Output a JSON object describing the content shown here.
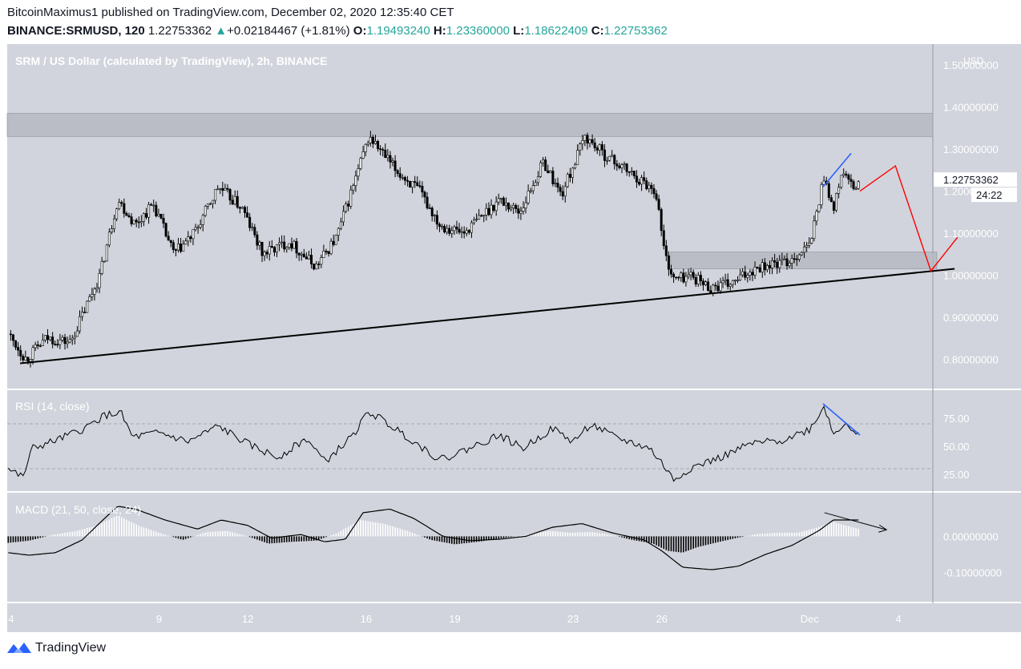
{
  "header": {
    "publisher_line": "BitcoinMaximus1 published on TradingView.com, December 02, 2020 12:35:40 CET",
    "symbol": "BINANCE:SRMUSD, 120",
    "last": "1.22753362",
    "change_arrow": "▲",
    "change": "+0.02184467 (+1.81%)",
    "o_label": "O:",
    "o_value": "1.19493240",
    "h_label": "H:",
    "h_value": "1.23360000",
    "l_label": "L:",
    "l_value": "1.18622409",
    "c_label": "C:",
    "c_value": "1.22753362"
  },
  "footer": {
    "brand": "TradingView"
  },
  "colors": {
    "panel_bg": "#d1d4dc",
    "up": "#ffffff",
    "down": "#000000",
    "projection": "#ff0000",
    "divergence": "#2962ff",
    "zone": "#b2b5be"
  },
  "chart_data": [
    {
      "type": "candlestick",
      "title": "SRM / US Dollar (calculated by TradingView), 2h, BINANCE",
      "currency_label": "USD",
      "ylim": [
        0.73,
        1.55
      ],
      "y_ticks": [
        1.5,
        1.4,
        1.3,
        1.2,
        1.1,
        1.0,
        0.9,
        0.8
      ],
      "y_tick_labels": [
        "1.50000000",
        "1.40000000",
        "1.30000000",
        "1.20000000",
        "1.10000000",
        "1.00000000",
        "0.90000000",
        "0.80000000"
      ],
      "x_tick_labels": [
        "4",
        "9",
        "12",
        "16",
        "19",
        "23",
        "26",
        "Dec",
        "4"
      ],
      "x_tick_days": [
        4,
        9,
        12,
        16,
        19,
        23,
        26,
        31,
        34
      ],
      "last_price_label": "1.22753362",
      "countdown_label": "24:22",
      "price_path": [
        {
          "day": 3.9,
          "price": 0.86
        },
        {
          "day": 4.5,
          "price": 0.8
        },
        {
          "day": 5.2,
          "price": 0.85
        },
        {
          "day": 6.0,
          "price": 0.84
        },
        {
          "day": 7.0,
          "price": 1.0
        },
        {
          "day": 7.6,
          "price": 1.18
        },
        {
          "day": 8.2,
          "price": 1.12
        },
        {
          "day": 8.8,
          "price": 1.17
        },
        {
          "day": 9.5,
          "price": 1.05
        },
        {
          "day": 10.2,
          "price": 1.1
        },
        {
          "day": 11.0,
          "price": 1.21
        },
        {
          "day": 11.8,
          "price": 1.16
        },
        {
          "day": 12.5,
          "price": 1.05
        },
        {
          "day": 13.4,
          "price": 1.08
        },
        {
          "day": 14.3,
          "price": 1.02
        },
        {
          "day": 15.0,
          "price": 1.09
        },
        {
          "day": 15.6,
          "price": 1.22
        },
        {
          "day": 16.1,
          "price": 1.33
        },
        {
          "day": 17.0,
          "price": 1.25
        },
        {
          "day": 17.8,
          "price": 1.2
        },
        {
          "day": 18.5,
          "price": 1.12
        },
        {
          "day": 19.3,
          "price": 1.1
        },
        {
          "day": 20.5,
          "price": 1.18
        },
        {
          "day": 21.2,
          "price": 1.15
        },
        {
          "day": 22.0,
          "price": 1.27
        },
        {
          "day": 22.6,
          "price": 1.19
        },
        {
          "day": 23.4,
          "price": 1.33
        },
        {
          "day": 24.0,
          "price": 1.29
        },
        {
          "day": 25.0,
          "price": 1.24
        },
        {
          "day": 25.8,
          "price": 1.2
        },
        {
          "day": 26.1,
          "price": 1.05
        },
        {
          "day": 26.4,
          "price": 0.99
        },
        {
          "day": 27.0,
          "price": 1.0
        },
        {
          "day": 27.6,
          "price": 0.97
        },
        {
          "day": 28.4,
          "price": 0.98
        },
        {
          "day": 29.2,
          "price": 1.02
        },
        {
          "day": 30.2,
          "price": 1.03
        },
        {
          "day": 31.0,
          "price": 1.07
        },
        {
          "day": 31.5,
          "price": 1.24
        },
        {
          "day": 31.8,
          "price": 1.15
        },
        {
          "day": 32.1,
          "price": 1.25
        },
        {
          "day": 32.5,
          "price": 1.2
        },
        {
          "day": 32.7,
          "price": 1.2275
        }
      ],
      "resistance_zone": {
        "from": 1.33,
        "to": 1.385
      },
      "support_zone": {
        "day_from": 26.3,
        "day_to": 35.3,
        "from": 1.015,
        "to": 1.055
      },
      "ascending_trendline": [
        {
          "day": 4.3,
          "price": 0.79
        },
        {
          "day": 35.9,
          "price": 1.015
        }
      ],
      "projection_path": [
        {
          "day": 32.7,
          "price": 1.2
        },
        {
          "day": 33.9,
          "price": 1.26
        },
        {
          "day": 35.1,
          "price": 1.01
        },
        {
          "day": 36.0,
          "price": 1.09
        }
      ],
      "price_divergence_line": [
        {
          "day": 31.45,
          "price": 1.21
        },
        {
          "day": 32.4,
          "price": 1.29
        }
      ]
    },
    {
      "type": "line",
      "title": "RSI (14, close)",
      "ylim": [
        10,
        100
      ],
      "y_ticks": [
        75,
        50,
        25
      ],
      "y_tick_labels": [
        "75.00",
        "50.00",
        "25.00"
      ],
      "bands": [
        70,
        30
      ],
      "values_path": [
        {
          "day": 3.9,
          "value": 30
        },
        {
          "day": 4.4,
          "value": 22
        },
        {
          "day": 4.7,
          "value": 48
        },
        {
          "day": 5.5,
          "value": 55
        },
        {
          "day": 6.5,
          "value": 66
        },
        {
          "day": 7.1,
          "value": 77
        },
        {
          "day": 7.7,
          "value": 80
        },
        {
          "day": 8.1,
          "value": 58
        },
        {
          "day": 9.0,
          "value": 62
        },
        {
          "day": 10.0,
          "value": 54
        },
        {
          "day": 11.0,
          "value": 68
        },
        {
          "day": 12.0,
          "value": 52
        },
        {
          "day": 13.0,
          "value": 40
        },
        {
          "day": 14.0,
          "value": 57
        },
        {
          "day": 14.6,
          "value": 36
        },
        {
          "day": 15.5,
          "value": 58
        },
        {
          "day": 16.1,
          "value": 81
        },
        {
          "day": 17.2,
          "value": 62
        },
        {
          "day": 18.5,
          "value": 38
        },
        {
          "day": 19.3,
          "value": 46
        },
        {
          "day": 20.5,
          "value": 60
        },
        {
          "day": 21.3,
          "value": 48
        },
        {
          "day": 22.3,
          "value": 66
        },
        {
          "day": 23.0,
          "value": 54
        },
        {
          "day": 23.6,
          "value": 70
        },
        {
          "day": 24.4,
          "value": 58
        },
        {
          "day": 25.6,
          "value": 48
        },
        {
          "day": 26.0,
          "value": 35
        },
        {
          "day": 26.4,
          "value": 20
        },
        {
          "day": 27.0,
          "value": 31
        },
        {
          "day": 28.0,
          "value": 40
        },
        {
          "day": 29.0,
          "value": 52
        },
        {
          "day": 30.0,
          "value": 55
        },
        {
          "day": 31.0,
          "value": 65
        },
        {
          "day": 31.5,
          "value": 86
        },
        {
          "day": 31.8,
          "value": 60
        },
        {
          "day": 32.2,
          "value": 72
        },
        {
          "day": 32.7,
          "value": 58
        }
      ],
      "divergence_line": [
        {
          "day": 31.45,
          "value": 88
        },
        {
          "day": 32.7,
          "value": 60
        }
      ]
    },
    {
      "type": "histogram+line",
      "title": "MACD (21, 50, close, 24)",
      "ylim": [
        -0.18,
        0.12
      ],
      "y_ticks": [
        0,
        -0.1
      ],
      "y_tick_labels": [
        "0.00000000",
        "-0.10000000"
      ],
      "macd_path": [
        {
          "day": 3.9,
          "value": -0.045
        },
        {
          "day": 4.6,
          "value": -0.052
        },
        {
          "day": 5.5,
          "value": -0.045
        },
        {
          "day": 6.4,
          "value": -0.01
        },
        {
          "day": 7.1,
          "value": 0.045
        },
        {
          "day": 7.6,
          "value": 0.083
        },
        {
          "day": 8.2,
          "value": 0.075
        },
        {
          "day": 9.2,
          "value": 0.045
        },
        {
          "day": 10.3,
          "value": 0.02
        },
        {
          "day": 11.1,
          "value": 0.045
        },
        {
          "day": 12.0,
          "value": 0.03
        },
        {
          "day": 12.8,
          "value": -0.005
        },
        {
          "day": 13.8,
          "value": 0.005
        },
        {
          "day": 14.6,
          "value": -0.015
        },
        {
          "day": 15.3,
          "value": -0.008
        },
        {
          "day": 15.9,
          "value": 0.065
        },
        {
          "day": 16.8,
          "value": 0.075
        },
        {
          "day": 17.6,
          "value": 0.05
        },
        {
          "day": 18.6,
          "value": 0.0
        },
        {
          "day": 19.5,
          "value": -0.012
        },
        {
          "day": 20.5,
          "value": -0.008
        },
        {
          "day": 21.4,
          "value": 0.0
        },
        {
          "day": 22.3,
          "value": 0.025
        },
        {
          "day": 23.3,
          "value": 0.035
        },
        {
          "day": 24.3,
          "value": 0.01
        },
        {
          "day": 25.4,
          "value": -0.01
        },
        {
          "day": 26.0,
          "value": -0.04
        },
        {
          "day": 26.7,
          "value": -0.085
        },
        {
          "day": 27.7,
          "value": -0.092
        },
        {
          "day": 28.6,
          "value": -0.082
        },
        {
          "day": 29.5,
          "value": -0.05
        },
        {
          "day": 30.4,
          "value": -0.025
        },
        {
          "day": 31.3,
          "value": 0.015
        },
        {
          "day": 31.8,
          "value": 0.045
        },
        {
          "day": 32.7,
          "value": 0.045
        }
      ],
      "histogram": [
        {
          "day": 3.9,
          "value": -0.018
        },
        {
          "day": 4.6,
          "value": -0.012
        },
        {
          "day": 5.4,
          "value": 0.004
        },
        {
          "day": 6.2,
          "value": 0.015
        },
        {
          "day": 6.9,
          "value": 0.03
        },
        {
          "day": 7.6,
          "value": 0.058
        },
        {
          "day": 8.3,
          "value": 0.03
        },
        {
          "day": 9.0,
          "value": 0.01
        },
        {
          "day": 9.8,
          "value": -0.01
        },
        {
          "day": 10.6,
          "value": 0.012
        },
        {
          "day": 11.3,
          "value": 0.015
        },
        {
          "day": 12.0,
          "value": 0.0
        },
        {
          "day": 12.7,
          "value": -0.02
        },
        {
          "day": 13.5,
          "value": -0.015
        },
        {
          "day": 14.3,
          "value": -0.012
        },
        {
          "day": 15.0,
          "value": 0.008
        },
        {
          "day": 15.8,
          "value": 0.045
        },
        {
          "day": 16.6,
          "value": 0.035
        },
        {
          "day": 17.4,
          "value": 0.015
        },
        {
          "day": 18.2,
          "value": -0.01
        },
        {
          "day": 19.0,
          "value": -0.022
        },
        {
          "day": 19.8,
          "value": -0.015
        },
        {
          "day": 20.6,
          "value": -0.005
        },
        {
          "day": 21.4,
          "value": 0.004
        },
        {
          "day": 22.2,
          "value": 0.015
        },
        {
          "day": 22.9,
          "value": 0.01
        },
        {
          "day": 23.6,
          "value": 0.012
        },
        {
          "day": 24.3,
          "value": 0.004
        },
        {
          "day": 25.0,
          "value": -0.01
        },
        {
          "day": 25.7,
          "value": -0.02
        },
        {
          "day": 26.2,
          "value": -0.04
        },
        {
          "day": 26.7,
          "value": -0.045
        },
        {
          "day": 27.2,
          "value": -0.03
        },
        {
          "day": 27.8,
          "value": -0.018
        },
        {
          "day": 28.5,
          "value": -0.005
        },
        {
          "day": 29.2,
          "value": 0.006
        },
        {
          "day": 29.9,
          "value": 0.01
        },
        {
          "day": 30.6,
          "value": 0.01
        },
        {
          "day": 31.3,
          "value": 0.025
        },
        {
          "day": 31.8,
          "value": 0.04
        },
        {
          "day": 32.2,
          "value": 0.03
        },
        {
          "day": 32.7,
          "value": 0.02
        }
      ],
      "divergence_arrow": [
        {
          "day": 31.5,
          "value": 0.065
        },
        {
          "day": 33.6,
          "value": 0.018
        }
      ]
    }
  ]
}
